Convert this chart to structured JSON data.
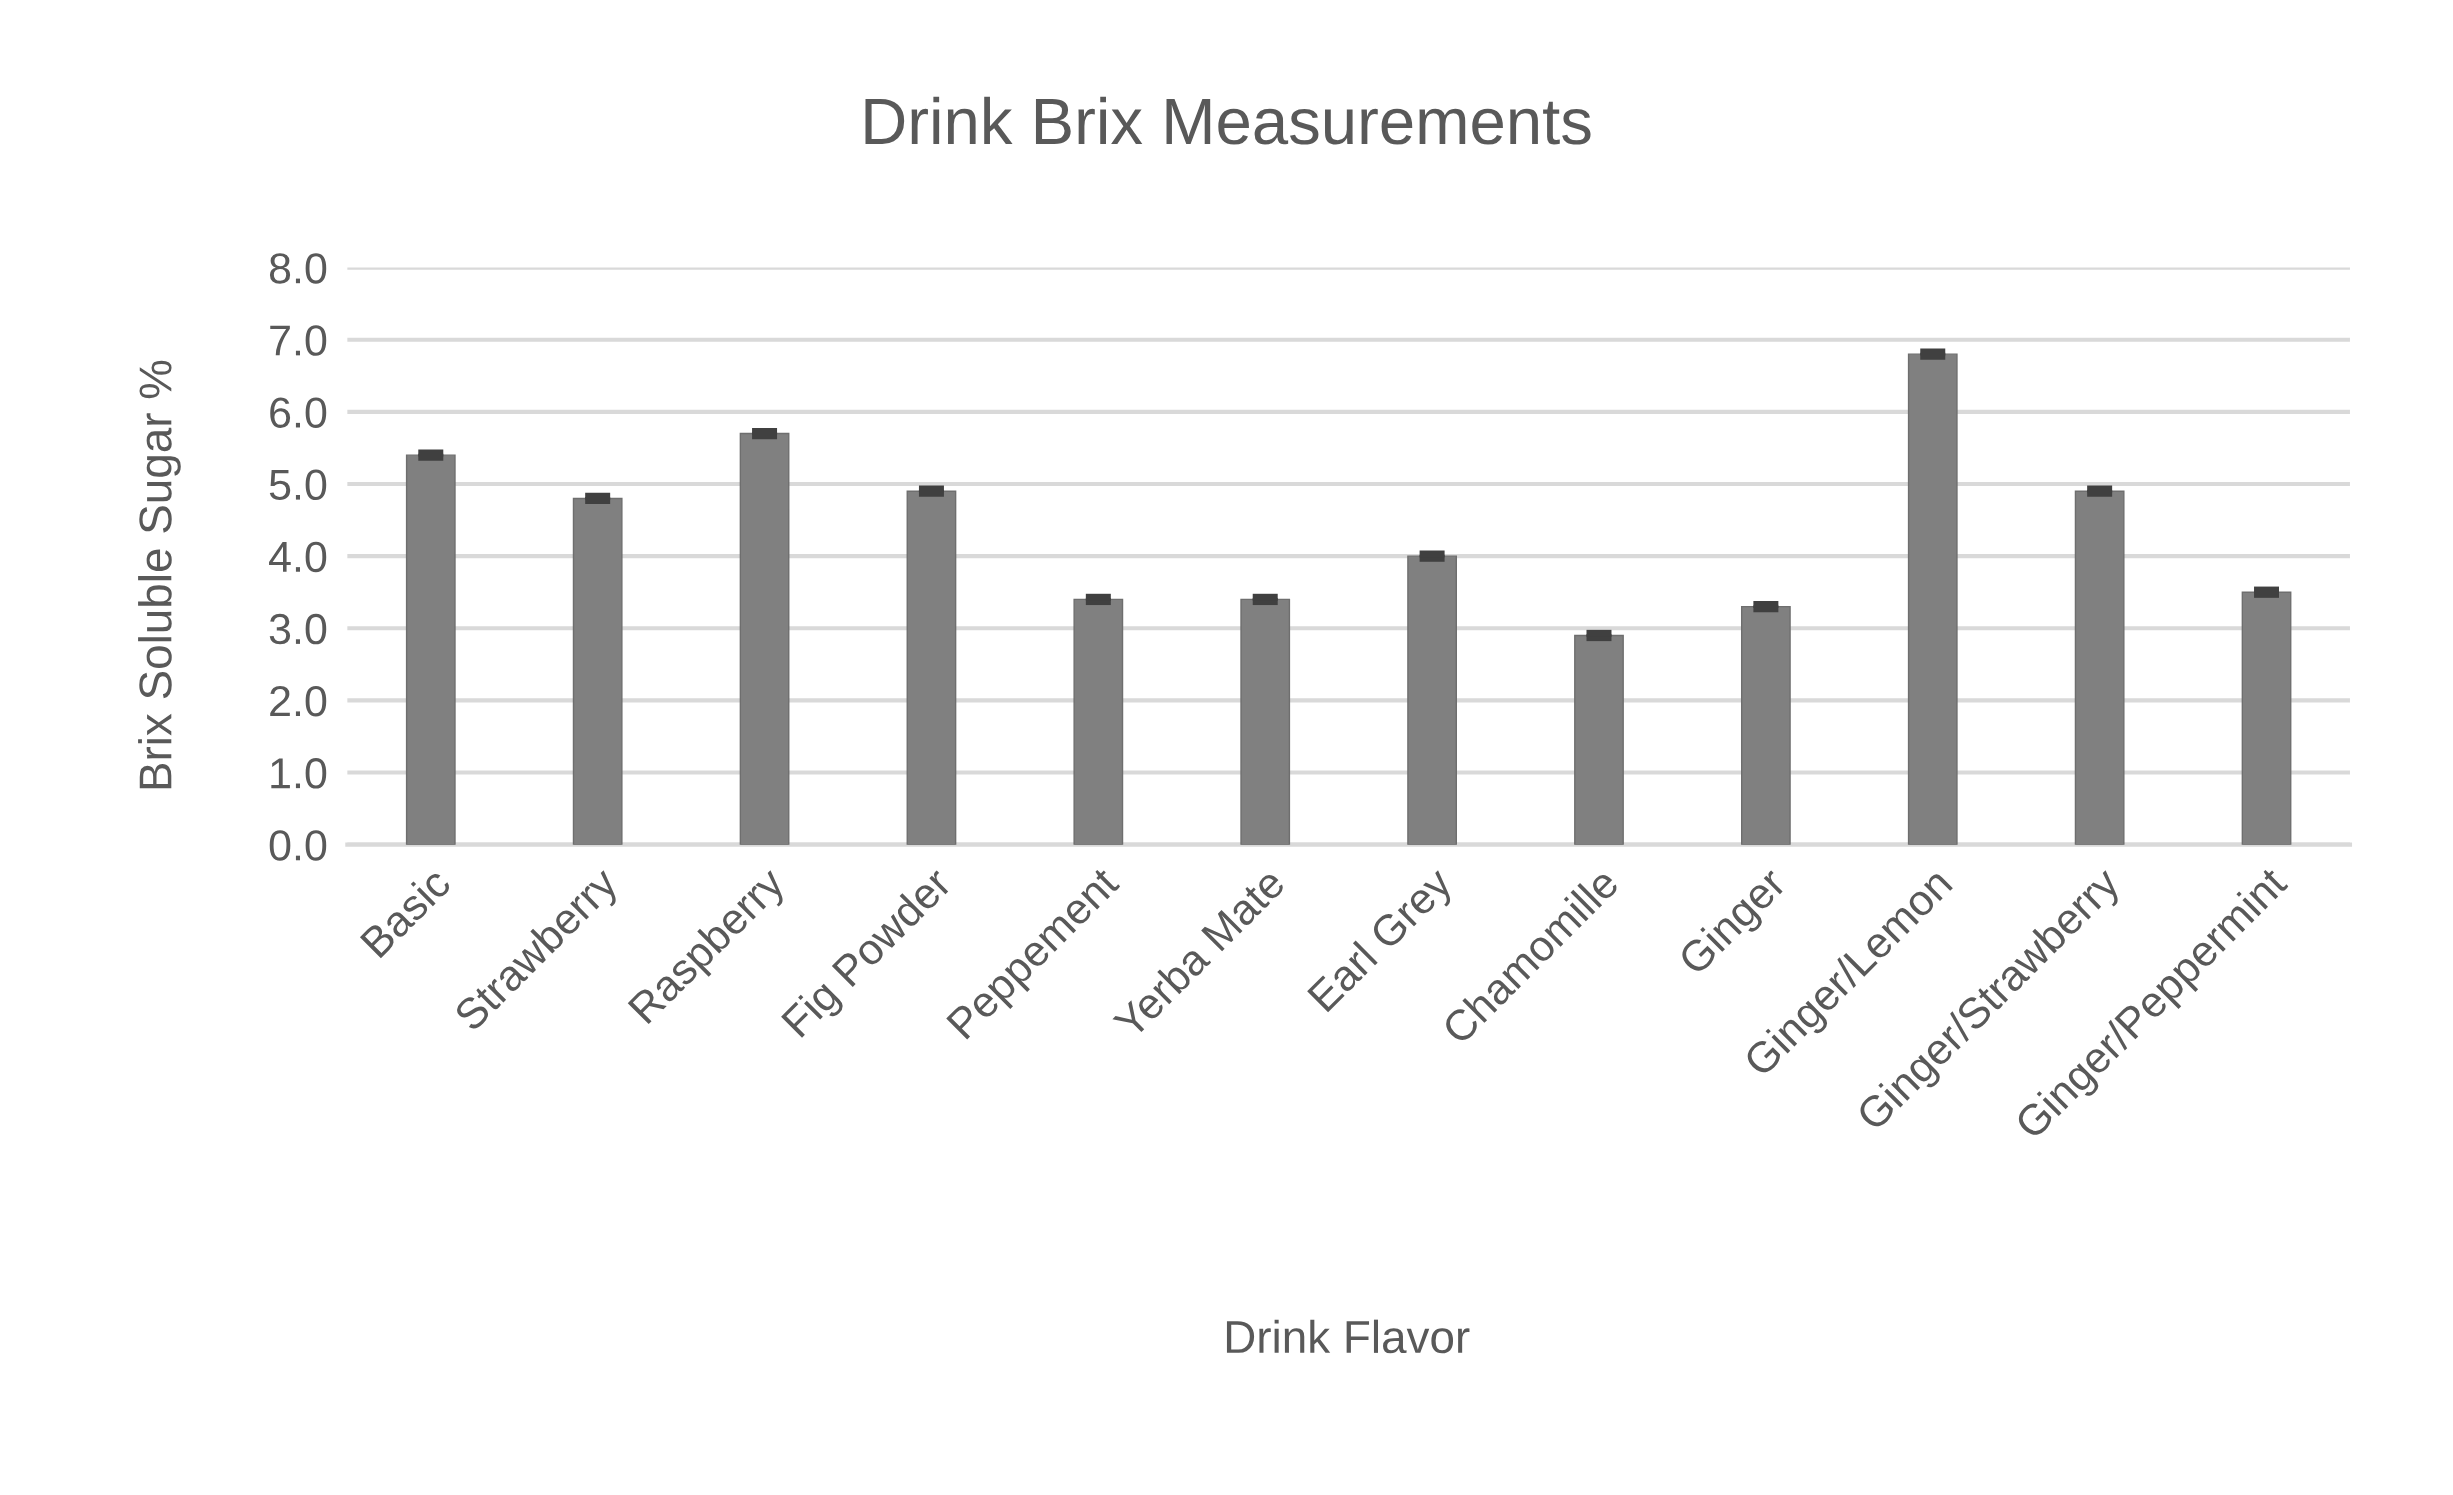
{
  "chart_data": {
    "type": "bar",
    "title": "Drink Brix Measurements",
    "xlabel": "Drink Flavor",
    "ylabel": "Brix Soluble Sugar %",
    "categories": [
      "Basic",
      "Strawberry",
      "Raspberry",
      "Fig Powder",
      "Peppement",
      "Yerba Mate",
      "Earl Grey",
      "Chamomille",
      "Ginger",
      "Ginger/Lemon",
      "Ginger/Strawberry",
      "Ginger/Peppermint"
    ],
    "values": [
      5.4,
      4.8,
      5.7,
      4.9,
      3.4,
      3.4,
      4.0,
      2.9,
      3.3,
      6.8,
      4.9,
      3.5
    ],
    "errors": [
      0.03,
      0.03,
      0.03,
      0.03,
      0.03,
      0.03,
      0.03,
      0.03,
      0.03,
      0.03,
      0.03,
      0.03
    ],
    "color": "#808080",
    "ylim": [
      0,
      8
    ],
    "yticks": [
      {
        "value": 0,
        "label": "0.0"
      },
      {
        "value": 1,
        "label": "1.0"
      },
      {
        "value": 2,
        "label": "2.0"
      },
      {
        "value": 3,
        "label": "3.0"
      },
      {
        "value": 4,
        "label": "4.0"
      },
      {
        "value": 5,
        "label": "5.0"
      },
      {
        "value": 6,
        "label": "6.0"
      },
      {
        "value": 7,
        "label": "7.0"
      },
      {
        "value": 8,
        "label": "8.0"
      }
    ],
    "grid": "y",
    "legend": false
  }
}
